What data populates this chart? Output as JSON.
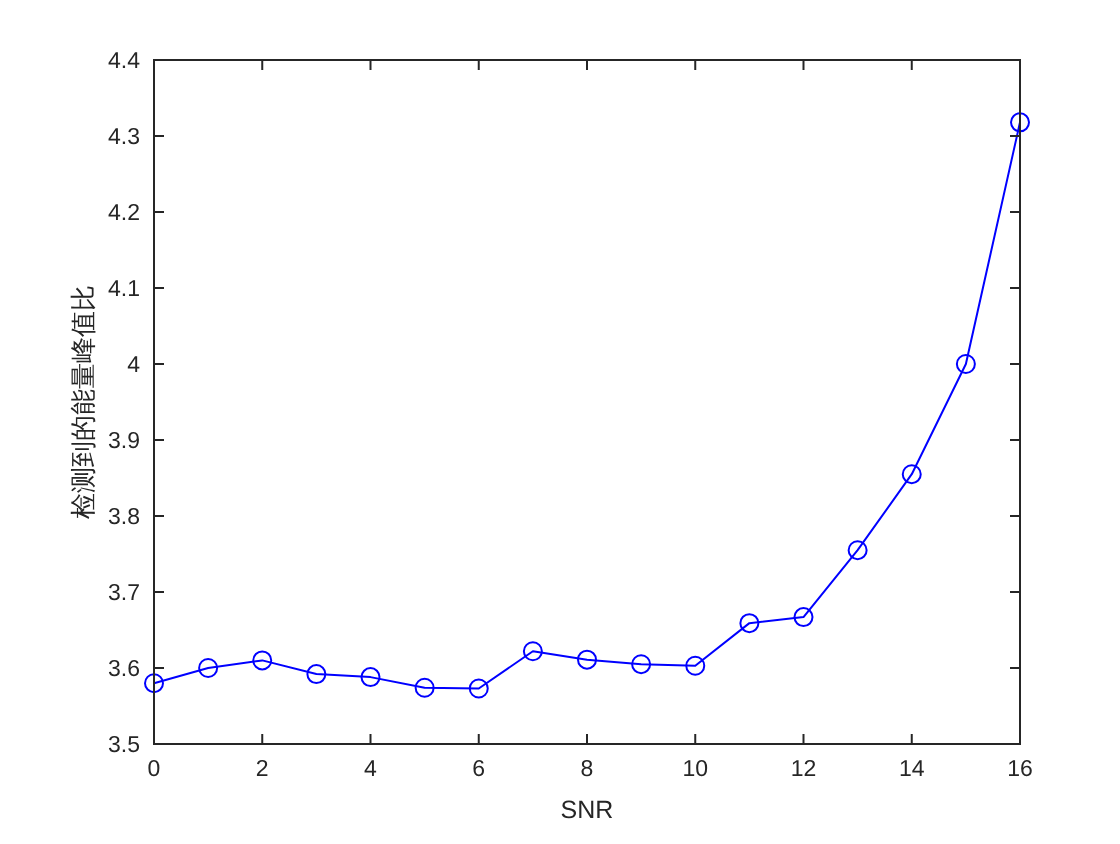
{
  "chart_data": {
    "type": "line",
    "xlabel": "SNR",
    "ylabel": "检测到的能量峰值比",
    "x": [
      0,
      1,
      2,
      3,
      4,
      5,
      6,
      7,
      8,
      9,
      10,
      11,
      12,
      13,
      14,
      15,
      16
    ],
    "values": [
      3.58,
      3.6,
      3.61,
      3.592,
      3.588,
      3.574,
      3.573,
      3.622,
      3.611,
      3.605,
      3.603,
      3.659,
      3.667,
      3.755,
      3.855,
      4.0,
      4.318
    ],
    "color": "#0000ff",
    "marker": "circle",
    "line_style": "solid",
    "xlim": [
      0,
      16
    ],
    "xticks": [
      0,
      2,
      4,
      6,
      8,
      10,
      12,
      14,
      16
    ],
    "ylim": [
      3.5,
      4.4
    ],
    "yticks": [
      3.5,
      3.6,
      3.7,
      3.8,
      3.9,
      4,
      4.1,
      4.2,
      4.3,
      4.4
    ]
  }
}
